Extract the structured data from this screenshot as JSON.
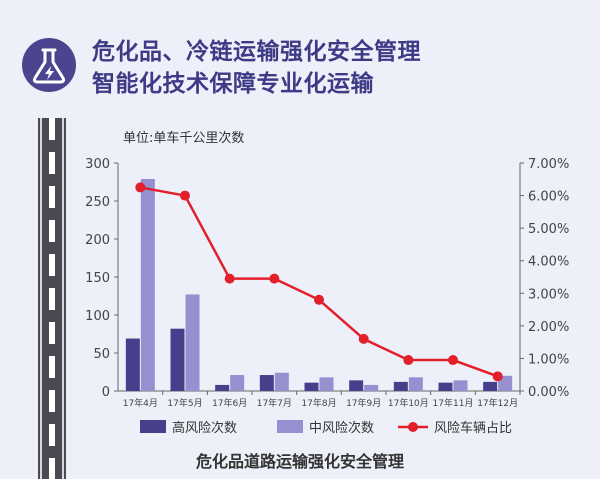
{
  "header": {
    "title_line1": "危化品、冷链运输强化安全管理",
    "title_line2": "智能化技术保障专业化运输",
    "icon": "flask-lightning-icon"
  },
  "footer": {
    "caption": "危化品道路运输强化安全管理"
  },
  "colors": {
    "title": "#3f3a86",
    "high_risk": "#453f8c",
    "mid_risk": "#9591d0",
    "ratio_line": "#e31f2a"
  },
  "chart_data": {
    "type": "bar",
    "unit_label": "单位:单车千公里次数",
    "categories": [
      "17年4月",
      "17年5月",
      "17年6月",
      "17年7月",
      "17年8月",
      "17年9月",
      "17年10月",
      "17年11月",
      "17年12月"
    ],
    "series": [
      {
        "name": "高风险次数",
        "type": "bar",
        "axis": "left",
        "values": [
          69,
          82,
          8,
          21,
          11,
          14,
          12,
          11,
          12
        ]
      },
      {
        "name": "中风险次数",
        "type": "bar",
        "axis": "left",
        "values": [
          279,
          127,
          21,
          24,
          18,
          8,
          18,
          14,
          20
        ]
      },
      {
        "name": "风险车辆占比",
        "type": "line",
        "axis": "right",
        "values": [
          6.25,
          6.0,
          3.45,
          3.45,
          2.8,
          1.6,
          0.95,
          0.95,
          0.45
        ]
      }
    ],
    "y_left": {
      "min": 0,
      "max": 300,
      "ticks": [
        "0",
        "50",
        "100",
        "150",
        "200",
        "250",
        "300"
      ]
    },
    "y_right": {
      "min": 0,
      "max": 7,
      "ticks": [
        "0.00%",
        "1.00%",
        "2.00%",
        "3.00%",
        "4.00%",
        "5.00%",
        "6.00%",
        "7.00%"
      ]
    },
    "grid": false,
    "legend": "bottom"
  }
}
